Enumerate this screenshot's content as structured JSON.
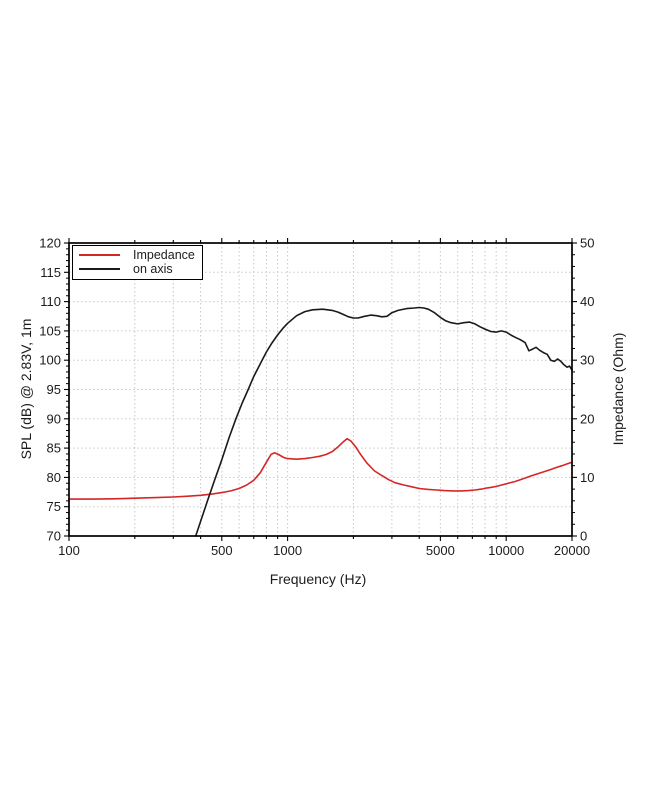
{
  "figure": {
    "background": "#ffffff",
    "frame_color": "#000000",
    "grid_color": "#c9c9c9",
    "text_color": "#1c1c1c"
  },
  "chart_data": {
    "type": "line",
    "x_scale": "log",
    "xlabel": "Frequency (Hz)",
    "ylabel_left": "SPL (dB) @ 2.83V, 1m",
    "ylabel_right": "Impedance (Ohm)",
    "xlim": [
      100,
      20000
    ],
    "ylim_left": [
      70,
      120
    ],
    "ylim_right": [
      0,
      50
    ],
    "x_ticks": [
      100,
      200,
      300,
      400,
      500,
      600,
      700,
      800,
      900,
      1000,
      2000,
      3000,
      4000,
      5000,
      6000,
      7000,
      8000,
      9000,
      10000,
      20000
    ],
    "x_tick_labels": [
      100,
      500,
      1000,
      5000,
      10000,
      20000
    ],
    "y_left_ticks": [
      70,
      75,
      80,
      85,
      90,
      95,
      100,
      105,
      110,
      115,
      120
    ],
    "y_left_minor_step": 1,
    "y_right_ticks": [
      0,
      10,
      20,
      30,
      40,
      50
    ],
    "y_right_minor_step": 2,
    "grid": true,
    "legend_position": "upper left",
    "legend": [
      {
        "label": "Impedance",
        "color": "#d42727",
        "axis": "right"
      },
      {
        "label": "on axis",
        "color": "#1a1a1a",
        "axis": "left"
      }
    ],
    "series": [
      {
        "name": "Impedance",
        "axis": "right",
        "unit": "Ohm",
        "color": "#d42727",
        "points": [
          [
            100,
            6.3
          ],
          [
            130,
            6.3
          ],
          [
            160,
            6.35
          ],
          [
            200,
            6.45
          ],
          [
            250,
            6.55
          ],
          [
            300,
            6.65
          ],
          [
            350,
            6.8
          ],
          [
            400,
            6.95
          ],
          [
            450,
            7.15
          ],
          [
            500,
            7.4
          ],
          [
            550,
            7.7
          ],
          [
            600,
            8.1
          ],
          [
            650,
            8.7
          ],
          [
            700,
            9.5
          ],
          [
            750,
            10.8
          ],
          [
            800,
            12.6
          ],
          [
            840,
            13.9
          ],
          [
            870,
            14.2
          ],
          [
            910,
            13.9
          ],
          [
            960,
            13.4
          ],
          [
            1000,
            13.2
          ],
          [
            1100,
            13.1
          ],
          [
            1200,
            13.2
          ],
          [
            1300,
            13.4
          ],
          [
            1400,
            13.6
          ],
          [
            1500,
            13.9
          ],
          [
            1600,
            14.4
          ],
          [
            1700,
            15.2
          ],
          [
            1800,
            16.1
          ],
          [
            1870,
            16.6
          ],
          [
            1950,
            16.2
          ],
          [
            2050,
            15.2
          ],
          [
            2150,
            14.0
          ],
          [
            2300,
            12.5
          ],
          [
            2500,
            11.1
          ],
          [
            2700,
            10.3
          ],
          [
            2900,
            9.6
          ],
          [
            3100,
            9.1
          ],
          [
            3400,
            8.7
          ],
          [
            3700,
            8.4
          ],
          [
            4000,
            8.1
          ],
          [
            4400,
            7.95
          ],
          [
            4800,
            7.85
          ],
          [
            5200,
            7.75
          ],
          [
            5700,
            7.7
          ],
          [
            6200,
            7.7
          ],
          [
            6700,
            7.75
          ],
          [
            7200,
            7.85
          ],
          [
            7700,
            8.0
          ],
          [
            8200,
            8.2
          ],
          [
            8700,
            8.35
          ],
          [
            9300,
            8.6
          ],
          [
            10000,
            8.9
          ],
          [
            11000,
            9.3
          ],
          [
            12000,
            9.8
          ],
          [
            13000,
            10.25
          ],
          [
            14000,
            10.65
          ],
          [
            15000,
            11.0
          ],
          [
            16000,
            11.35
          ],
          [
            17000,
            11.7
          ],
          [
            18000,
            12.0
          ],
          [
            19000,
            12.3
          ],
          [
            20000,
            12.6
          ]
        ]
      },
      {
        "name": "on axis",
        "axis": "left",
        "unit": "dB",
        "color": "#1a1a1a",
        "points": [
          [
            380,
            70
          ],
          [
            400,
            72.5
          ],
          [
            430,
            76
          ],
          [
            460,
            79.2
          ],
          [
            500,
            83
          ],
          [
            540,
            86.8
          ],
          [
            580,
            90
          ],
          [
            620,
            92.7
          ],
          [
            660,
            95
          ],
          [
            700,
            97.2
          ],
          [
            750,
            99.4
          ],
          [
            800,
            101.4
          ],
          [
            850,
            103
          ],
          [
            900,
            104.3
          ],
          [
            950,
            105.4
          ],
          [
            1000,
            106.3
          ],
          [
            1100,
            107.6
          ],
          [
            1200,
            108.3
          ],
          [
            1300,
            108.6
          ],
          [
            1450,
            108.7
          ],
          [
            1600,
            108.5
          ],
          [
            1700,
            108.2
          ],
          [
            1800,
            107.8
          ],
          [
            1900,
            107.4
          ],
          [
            2000,
            107.2
          ],
          [
            2100,
            107.2
          ],
          [
            2250,
            107.5
          ],
          [
            2400,
            107.7
          ],
          [
            2550,
            107.6
          ],
          [
            2700,
            107.4
          ],
          [
            2850,
            107.5
          ],
          [
            3000,
            108.1
          ],
          [
            3200,
            108.5
          ],
          [
            3500,
            108.8
          ],
          [
            3800,
            108.9
          ],
          [
            4000,
            109.0
          ],
          [
            4200,
            108.9
          ],
          [
            4400,
            108.7
          ],
          [
            4700,
            108.1
          ],
          [
            5000,
            107.3
          ],
          [
            5300,
            106.7
          ],
          [
            5600,
            106.4
          ],
          [
            6000,
            106.2
          ],
          [
            6400,
            106.4
          ],
          [
            6800,
            106.5
          ],
          [
            7200,
            106.2
          ],
          [
            7600,
            105.7
          ],
          [
            8000,
            105.3
          ],
          [
            8500,
            104.9
          ],
          [
            9000,
            104.8
          ],
          [
            9500,
            105.0
          ],
          [
            10000,
            104.8
          ],
          [
            10500,
            104.3
          ],
          [
            11000,
            103.9
          ],
          [
            11600,
            103.5
          ],
          [
            12200,
            103.0
          ],
          [
            12700,
            101.6
          ],
          [
            13200,
            101.9
          ],
          [
            13700,
            102.2
          ],
          [
            14200,
            101.7
          ],
          [
            14800,
            101.3
          ],
          [
            15400,
            101.0
          ],
          [
            16000,
            100.0
          ],
          [
            16600,
            99.8
          ],
          [
            17200,
            100.2
          ],
          [
            17800,
            99.8
          ],
          [
            18400,
            99.2
          ],
          [
            19000,
            98.8
          ],
          [
            19500,
            99.0
          ],
          [
            20000,
            98.3
          ]
        ]
      }
    ]
  }
}
